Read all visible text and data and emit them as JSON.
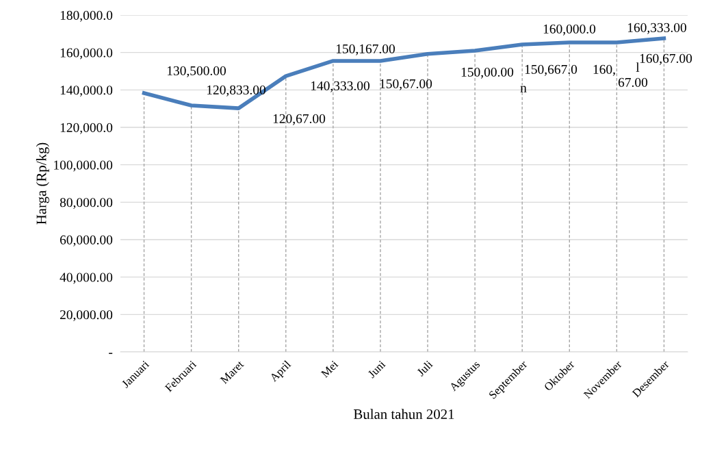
{
  "chart_data": {
    "type": "line",
    "xlabel": "Bulan tahun 2021",
    "ylabel": "Harga (Rp/kg)",
    "categories": [
      "Januari",
      "Februari",
      "Maret",
      "April",
      "Mei",
      "Juni",
      "Juli",
      "Agustus",
      "September",
      "Oktober",
      "November",
      "Desember"
    ],
    "series": [
      {
        "color": "#4a7ebb",
        "values": [
          138300,
          131700,
          130200,
          147400,
          155500,
          155500,
          159200,
          161000,
          164300,
          165400,
          165400,
          167600
        ]
      }
    ],
    "ylim": [
      0,
      180000
    ],
    "yticks": [
      {
        "value": 0,
        "label": "-"
      },
      {
        "value": 20000,
        "label": "20,000.00"
      },
      {
        "value": 40000,
        "label": "40,000.00"
      },
      {
        "value": 60000,
        "label": "60,000.00"
      },
      {
        "value": 80000,
        "label": "80,000.00"
      },
      {
        "value": 100000,
        "label": "100,000.00"
      },
      {
        "value": 120000,
        "label": "120,000.0"
      },
      {
        "value": 140000,
        "label": "140,000.0"
      },
      {
        "value": 160000,
        "label": "160,000.0"
      },
      {
        "value": 180000,
        "label": "180,000.0"
      }
    ],
    "grid": true,
    "marker": "none",
    "line_style": "solid",
    "annotations": [
      "130,500.00",
      "120,833.00",
      "120,67.00",
      "140,333.00",
      "150,167.00",
      "150,67.00",
      "150,00.00",
      "150,667.0",
      "n",
      "160,000.0",
      "160,",
      "67.00",
      "160,333.00",
      "160,67.00",
      "l"
    ]
  }
}
